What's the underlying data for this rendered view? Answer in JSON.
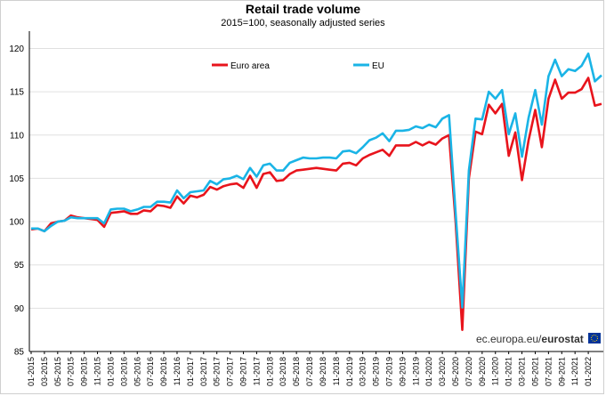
{
  "chart_data": {
    "type": "line",
    "title": "Retail trade volume",
    "subtitle": "2015=100, seasonally adjusted series",
    "xlabel": "",
    "ylabel": "",
    "ylim": [
      85,
      122
    ],
    "yticks": [
      85,
      90,
      95,
      100,
      105,
      110,
      115,
      120
    ],
    "x_tick_labels": [
      "01-2015",
      "03-2015",
      "05-2015",
      "07-2015",
      "09-2015",
      "11-2015",
      "01-2016",
      "03-2016",
      "05-2016",
      "07-2016",
      "09-2016",
      "11-2016",
      "01-2017",
      "03-2017",
      "05-2017",
      "07-2017",
      "09-2017",
      "11-2017",
      "01-2018",
      "03-2018",
      "05-2018",
      "07-2018",
      "09-2018",
      "11-2018",
      "01-2019",
      "03-2019",
      "05-2019",
      "07-2019",
      "09-2019",
      "11-2019",
      "01-2020",
      "03-2020",
      "05-2020",
      "07-2020",
      "09-2020",
      "11-2020",
      "01-2021",
      "03-2021",
      "05-2021",
      "07-2021",
      "09-2021",
      "11-2021",
      "01-2022"
    ],
    "legend_position": "top",
    "series": [
      {
        "name": "Euro area",
        "color": "#e8141c",
        "values": [
          99.1,
          99.2,
          98.9,
          99.8,
          100.0,
          100.1,
          100.7,
          100.5,
          100.4,
          100.3,
          100.2,
          99.4,
          101.0,
          101.1,
          101.2,
          100.9,
          100.9,
          101.3,
          101.2,
          101.9,
          101.8,
          101.6,
          102.9,
          102.1,
          103.0,
          102.8,
          103.1,
          104.0,
          103.7,
          104.1,
          104.3,
          104.4,
          103.9,
          105.3,
          103.9,
          105.5,
          105.7,
          104.7,
          104.8,
          105.5,
          105.9,
          106.0,
          106.1,
          106.2,
          106.1,
          106.0,
          105.9,
          106.7,
          106.8,
          106.5,
          107.3,
          107.7,
          108.0,
          108.3,
          107.6,
          108.8,
          108.8,
          108.8,
          109.2,
          108.8,
          109.2,
          108.9,
          109.6,
          110.0,
          100.0,
          87.5,
          105.0,
          110.4,
          110.1,
          113.5,
          112.5,
          113.6,
          107.6,
          110.3,
          104.8,
          109.4,
          112.9,
          108.6,
          114.2,
          116.4,
          114.2,
          114.9,
          114.9,
          115.3,
          116.6,
          113.4,
          113.6
        ]
      },
      {
        "name": "EU",
        "color": "#1ab4e6",
        "values": [
          99.2,
          99.2,
          98.9,
          99.5,
          100.0,
          100.1,
          100.5,
          100.4,
          100.4,
          100.4,
          100.4,
          99.8,
          101.4,
          101.5,
          101.5,
          101.2,
          101.4,
          101.7,
          101.7,
          102.3,
          102.3,
          102.2,
          103.6,
          102.7,
          103.4,
          103.5,
          103.6,
          104.7,
          104.3,
          104.9,
          105.0,
          105.3,
          104.9,
          106.2,
          105.2,
          106.5,
          106.7,
          105.9,
          105.9,
          106.8,
          107.1,
          107.4,
          107.3,
          107.3,
          107.4,
          107.4,
          107.3,
          108.1,
          108.2,
          107.9,
          108.6,
          109.4,
          109.7,
          110.2,
          109.3,
          110.5,
          110.5,
          110.6,
          111.0,
          110.8,
          111.2,
          110.9,
          111.9,
          112.3,
          101.0,
          90.1,
          105.9,
          111.9,
          111.8,
          115.0,
          114.2,
          115.2,
          110.1,
          112.5,
          107.5,
          112.0,
          115.2,
          111.2,
          116.8,
          118.7,
          116.8,
          117.6,
          117.4,
          118.0,
          119.4,
          116.2,
          116.9
        ]
      }
    ]
  },
  "watermark": {
    "prefix": "ec.europa.eu/",
    "brand": "eurostat",
    "flag_color": "#003399",
    "star_color": "#ffcc00"
  }
}
